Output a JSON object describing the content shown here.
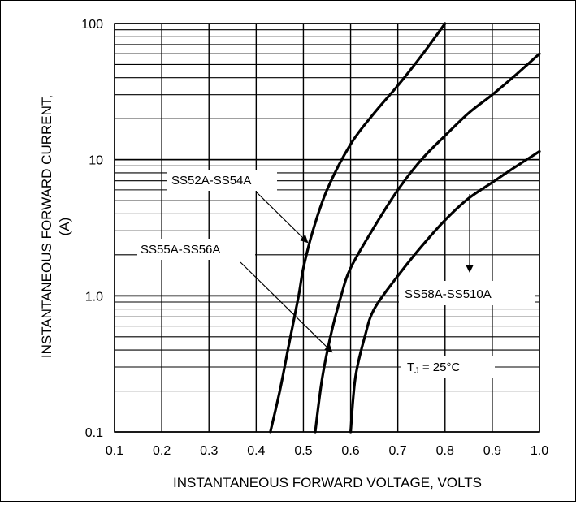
{
  "chart_data": {
    "type": "line",
    "title": "",
    "xlabel": "INSTANTANEOUS FORWARD VOLTAGE, VOLTS",
    "ylabel_lines": [
      "INSTANTANEOUS FORWARD CURRENT,",
      "(A)"
    ],
    "x_scale": "linear",
    "y_scale": "log",
    "xlim": [
      0.1,
      1.0
    ],
    "ylim": [
      0.1,
      100
    ],
    "x_ticks": [
      0.1,
      0.2,
      0.3,
      0.4,
      0.5,
      0.6,
      0.7,
      0.8,
      0.9,
      1.0
    ],
    "x_tick_labels": [
      "0.1",
      "0.2",
      "0.3",
      "0.4",
      "0.5",
      "0.6",
      "0.7",
      "0.8",
      "0.9",
      "1.0"
    ],
    "y_ticks": [
      0.1,
      1.0,
      10,
      100
    ],
    "y_tick_labels": [
      "0.1",
      "1.0",
      "10",
      "100"
    ],
    "grid": true,
    "series": [
      {
        "name": "SS52A-SS54A",
        "x": [
          0.43,
          0.45,
          0.47,
          0.49,
          0.5,
          0.52,
          0.55,
          0.6,
          0.65,
          0.7,
          0.75,
          0.8
        ],
        "y": [
          0.1,
          0.2,
          0.45,
          1.0,
          1.6,
          3.0,
          6.0,
          13,
          22,
          35,
          58,
          100
        ]
      },
      {
        "name": "SS55A-SS56A",
        "x": [
          0.525,
          0.54,
          0.56,
          0.58,
          0.6,
          0.65,
          0.7,
          0.75,
          0.8,
          0.85,
          0.9,
          0.95,
          1.0
        ],
        "y": [
          0.1,
          0.25,
          0.55,
          1.0,
          1.6,
          3.2,
          6.0,
          10,
          15,
          22,
          30,
          42,
          60
        ]
      },
      {
        "name": "SS58A-SS510A",
        "x": [
          0.6,
          0.61,
          0.63,
          0.65,
          0.7,
          0.75,
          0.8,
          0.85,
          0.9,
          0.95,
          1.0
        ],
        "y": [
          0.1,
          0.25,
          0.5,
          0.8,
          1.4,
          2.3,
          3.6,
          5.2,
          6.8,
          8.9,
          11.5
        ]
      }
    ],
    "annotations": [
      {
        "text": "SS52A-SS54A",
        "arrow_to_series": "SS52A-SS54A"
      },
      {
        "text": "SS55A-SS56A",
        "arrow_to_series": "SS55A-SS56A"
      },
      {
        "text": "SS58A-SS510A",
        "arrow_to_series": "SS58A-SS510A"
      }
    ],
    "condition_label": {
      "text": "25°C",
      "prefix": "T",
      "subscript": "J"
    }
  }
}
